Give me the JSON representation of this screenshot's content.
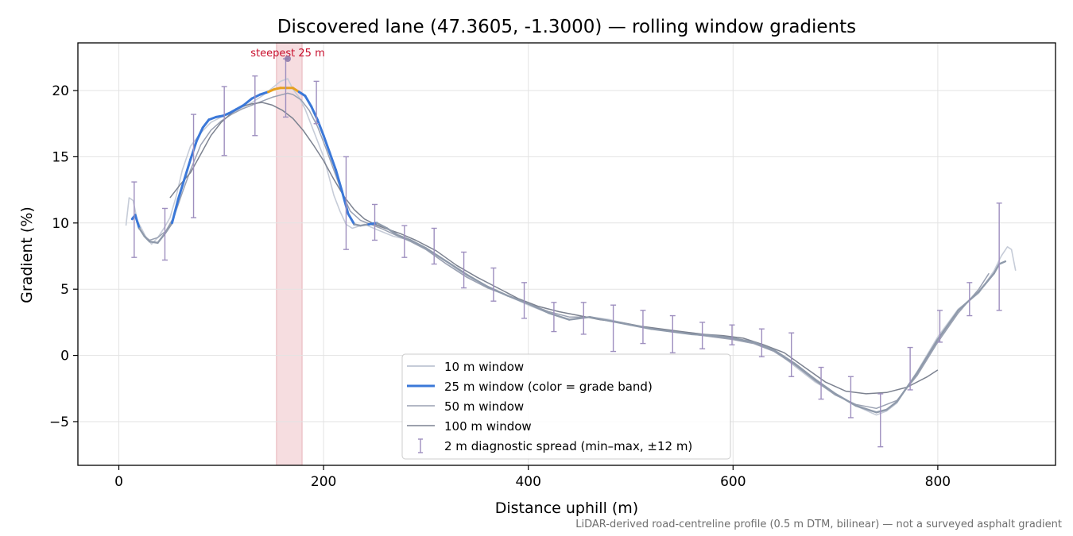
{
  "chart_data": {
    "type": "line",
    "title": "Discovered lane (47.3605, -1.3000) — rolling window gradients",
    "xlabel": "Distance uphill (m)",
    "ylabel": "Gradient (%)",
    "xlim": [
      -40,
      915
    ],
    "ylim": [
      -8.3,
      23.6
    ],
    "xticks": [
      0,
      200,
      400,
      600,
      800
    ],
    "yticks": [
      -5,
      0,
      5,
      10,
      15,
      20
    ],
    "ytick_labels": [
      "−5",
      "0",
      "5",
      "10",
      "15",
      "20"
    ],
    "grid": true,
    "legend_position": "lower center",
    "footnote": "LiDAR-derived road-centreline profile (0.5 m DTM, bilinear) — not a surveyed asphalt gradient",
    "highlight": {
      "label": "steepest 25 m",
      "x_range": [
        154,
        179
      ],
      "peak_x": 165,
      "peak_y": 22.4,
      "color": "#c8102e"
    },
    "colors": {
      "w10": "#c6ccd8",
      "w25": "#3b78d8",
      "w25_grey": "#8f9aab",
      "w25_steep": "#e6a020",
      "w50": "#9aa1b2",
      "w100": "#7c8290",
      "errorbar": "#9e8fbf",
      "highlight_fill": "#f4d7da"
    },
    "series": [
      {
        "name": "10 m window",
        "x": [
          7,
          10,
          14,
          18,
          22,
          26,
          32,
          38,
          44,
          50,
          56,
          62,
          70,
          80,
          90,
          100,
          110,
          120,
          130,
          140,
          150,
          158,
          165,
          170,
          176,
          182,
          188,
          194,
          200,
          205,
          210,
          216,
          222,
          228,
          240,
          252,
          268,
          285,
          300,
          320,
          340,
          360,
          380,
          400,
          420,
          440,
          460,
          480,
          500,
          520,
          540,
          560,
          580,
          600,
          620,
          640,
          660,
          680,
          700,
          720,
          740,
          750,
          760,
          780,
          800,
          820,
          840,
          855,
          862,
          868,
          872,
          876
        ],
        "y": [
          9.8,
          11.9,
          11.7,
          10.2,
          9.6,
          9.0,
          8.4,
          8.9,
          9.6,
          10.4,
          12.0,
          14.0,
          15.8,
          16.8,
          17.6,
          18.0,
          18.3,
          18.7,
          19.1,
          19.6,
          20.2,
          20.7,
          20.9,
          20.1,
          19.5,
          18.6,
          17.4,
          16.2,
          15.0,
          13.6,
          12.1,
          10.9,
          9.9,
          9.6,
          9.9,
          9.5,
          9.0,
          8.7,
          8.0,
          6.9,
          6.0,
          5.2,
          4.5,
          3.8,
          3.2,
          2.7,
          2.9,
          2.7,
          2.3,
          2.0,
          1.8,
          1.7,
          1.5,
          1.3,
          1.0,
          0.4,
          -0.8,
          -2.0,
          -2.9,
          -3.8,
          -4.5,
          -4.2,
          -3.6,
          -1.2,
          1.4,
          3.5,
          4.7,
          6.4,
          7.5,
          8.2,
          8.0,
          6.4
        ]
      },
      {
        "name": "25 m window (color = grade band)",
        "x": [
          13,
          16,
          20,
          25,
          30,
          38,
          45,
          52,
          58,
          64,
          70,
          76,
          82,
          88,
          95,
          102,
          108,
          115,
          122,
          130,
          138,
          146,
          152,
          158,
          164,
          170,
          176,
          182,
          188,
          194,
          200,
          206,
          212,
          218,
          224,
          230,
          236,
          244,
          252,
          262,
          272,
          285,
          300,
          320,
          340,
          360,
          380,
          400,
          420,
          440,
          460,
          480,
          500,
          520,
          540,
          560,
          580,
          600,
          620,
          640,
          660,
          680,
          700,
          720,
          740,
          750,
          760,
          780,
          800,
          820,
          840,
          855,
          860,
          866
        ],
        "y": [
          10.3,
          10.6,
          9.6,
          9.0,
          8.6,
          8.5,
          9.2,
          10.0,
          11.8,
          13.3,
          14.8,
          16.2,
          17.2,
          17.8,
          18.0,
          18.1,
          18.3,
          18.6,
          18.9,
          19.4,
          19.7,
          19.9,
          20.1,
          20.2,
          20.2,
          20.2,
          19.9,
          19.6,
          18.8,
          17.8,
          16.6,
          15.3,
          14.0,
          12.4,
          10.7,
          9.9,
          9.8,
          9.9,
          10.0,
          9.6,
          9.1,
          8.7,
          8.1,
          7.1,
          6.1,
          5.2,
          4.5,
          3.9,
          3.2,
          2.7,
          2.9,
          2.6,
          2.3,
          2.0,
          1.8,
          1.6,
          1.5,
          1.3,
          1.0,
          0.4,
          -0.6,
          -1.8,
          -2.9,
          -3.8,
          -4.3,
          -4.1,
          -3.5,
          -1.3,
          1.2,
          3.4,
          4.8,
          6.2,
          6.9,
          7.1
        ]
      },
      {
        "name": "50 m window",
        "x": [
          25,
          30,
          38,
          46,
          54,
          62,
          70,
          80,
          90,
          100,
          110,
          120,
          130,
          140,
          150,
          160,
          165,
          170,
          178,
          186,
          194,
          202,
          210,
          218,
          226,
          236,
          246,
          256,
          270,
          285,
          300,
          320,
          340,
          360,
          380,
          400,
          420,
          440,
          460,
          480,
          500,
          520,
          540,
          560,
          580,
          600,
          620,
          640,
          660,
          680,
          700,
          720,
          740,
          760,
          780,
          800,
          820,
          840,
          850
        ],
        "y": [
          9.0,
          8.7,
          8.9,
          9.4,
          10.5,
          12.3,
          14.0,
          15.9,
          17.0,
          17.7,
          18.2,
          18.6,
          18.9,
          19.2,
          19.5,
          19.7,
          19.8,
          19.7,
          19.3,
          18.5,
          17.3,
          15.7,
          14.0,
          12.3,
          10.9,
          10.2,
          9.9,
          9.6,
          9.1,
          8.6,
          8.0,
          6.9,
          5.9,
          5.1,
          4.5,
          3.9,
          3.3,
          2.9,
          2.9,
          2.6,
          2.3,
          2.0,
          1.8,
          1.6,
          1.4,
          1.2,
          0.9,
          0.3,
          -0.7,
          -1.9,
          -3.0,
          -3.7,
          -4.0,
          -3.4,
          -1.5,
          1.0,
          3.2,
          5.0,
          6.2
        ]
      },
      {
        "name": "100 m window",
        "x": [
          50,
          60,
          70,
          80,
          90,
          100,
          110,
          120,
          130,
          140,
          150,
          160,
          170,
          180,
          190,
          200,
          210,
          220,
          230,
          240,
          250,
          260,
          275,
          290,
          310,
          330,
          350,
          370,
          390,
          410,
          430,
          450,
          470,
          490,
          510,
          530,
          550,
          570,
          590,
          610,
          630,
          650,
          670,
          690,
          710,
          730,
          750,
          770,
          790,
          800
        ],
        "y": [
          11.9,
          12.9,
          13.8,
          15.2,
          16.6,
          17.6,
          18.3,
          18.8,
          19.0,
          19.1,
          18.9,
          18.5,
          17.9,
          17.0,
          15.9,
          14.7,
          13.3,
          12.0,
          11.0,
          10.3,
          9.9,
          9.6,
          9.2,
          8.7,
          7.9,
          6.8,
          5.9,
          5.1,
          4.3,
          3.7,
          3.3,
          3.0,
          2.7,
          2.5,
          2.2,
          2.0,
          1.8,
          1.6,
          1.5,
          1.3,
          0.8,
          0.2,
          -0.9,
          -2.0,
          -2.7,
          -2.9,
          -2.8,
          -2.4,
          -1.6,
          -1.1
        ]
      },
      {
        "name": "2 m diagnostic spread (min–max, ±12 m)",
        "x": [
          15,
          45,
          73,
          103,
          133,
          163,
          193,
          222,
          250,
          279,
          308,
          337,
          366,
          396,
          425,
          454,
          483,
          512,
          541,
          570,
          599,
          628,
          657,
          686,
          715,
          744,
          773,
          802,
          831,
          860
        ],
        "low": [
          7.4,
          7.2,
          10.4,
          15.1,
          16.6,
          18.0,
          17.5,
          8.0,
          8.7,
          7.4,
          6.9,
          5.1,
          4.1,
          2.8,
          1.8,
          1.6,
          0.3,
          0.9,
          0.2,
          0.5,
          0.8,
          -0.1,
          -1.6,
          -3.3,
          -4.7,
          -6.9,
          -2.6,
          1.0,
          3.0,
          3.4
        ],
        "high": [
          13.1,
          11.1,
          18.2,
          20.3,
          21.1,
          22.4,
          20.7,
          15.0,
          11.4,
          9.8,
          9.6,
          7.8,
          6.6,
          5.5,
          4.0,
          4.0,
          3.8,
          3.4,
          3.0,
          2.5,
          2.3,
          2.0,
          1.7,
          -0.9,
          -1.6,
          -2.9,
          0.6,
          3.4,
          5.5,
          11.5
        ]
      }
    ]
  }
}
